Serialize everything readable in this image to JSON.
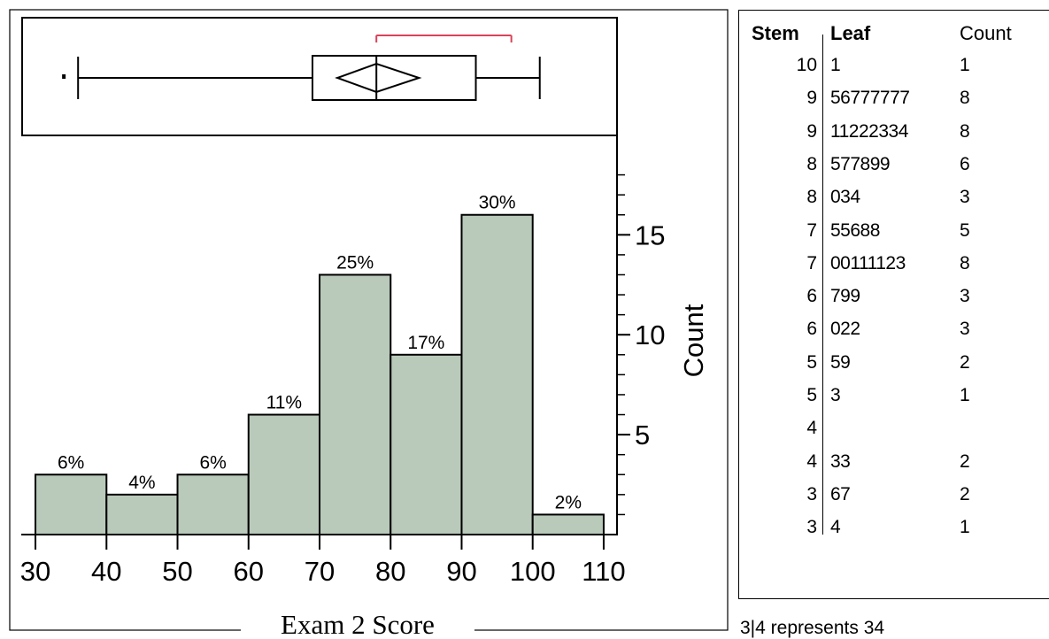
{
  "chart_data": {
    "type": "bar",
    "xlabel": "Exam 2 Score",
    "ylabel": "Count",
    "bins": [
      [
        30,
        40
      ],
      [
        40,
        50
      ],
      [
        50,
        60
      ],
      [
        60,
        70
      ],
      [
        70,
        80
      ],
      [
        80,
        90
      ],
      [
        90,
        100
      ],
      [
        100,
        110
      ]
    ],
    "values": [
      3,
      2,
      3,
      6,
      13,
      9,
      16,
      1
    ],
    "bar_labels": [
      "6%",
      "4%",
      "6%",
      "11%",
      "25%",
      "17%",
      "30%",
      "2%"
    ],
    "xlim": [
      28,
      112
    ],
    "ylim": [
      0,
      19
    ],
    "x_ticks": [
      30,
      40,
      50,
      60,
      70,
      80,
      90,
      100,
      110
    ],
    "x_tick_labels": [
      "30",
      "40",
      "50",
      "60",
      "70",
      "80",
      "90",
      "100",
      "110"
    ],
    "y_ticks": [
      5,
      10,
      15
    ],
    "y_tick_labels": [
      "5",
      "10",
      "15"
    ],
    "y_minor_ticks": [
      1,
      2,
      3,
      4,
      6,
      7,
      8,
      9,
      11,
      12,
      13,
      14,
      16,
      17,
      18
    ],
    "bar_color": "#b9c9ba",
    "boxplot": {
      "whisker_low": 36,
      "q1": 69,
      "median": 78,
      "q3": 92,
      "whisker_high": 101,
      "mean": 78,
      "mean_ci": [
        72.5,
        84
      ],
      "outliers": [
        34
      ],
      "shortest_half": [
        78,
        97
      ],
      "shortest_half_color": "#d9435a"
    }
  },
  "stem_leaf": {
    "headers": {
      "stem": "Stem",
      "leaf": "Leaf",
      "count": "Count"
    },
    "rows": [
      {
        "stem": "10",
        "leaf": "1",
        "count": "1"
      },
      {
        "stem": "9",
        "leaf": "56777777",
        "count": "8"
      },
      {
        "stem": "9",
        "leaf": "11222334",
        "count": "8"
      },
      {
        "stem": "8",
        "leaf": "577899",
        "count": "6"
      },
      {
        "stem": "8",
        "leaf": "034",
        "count": "3"
      },
      {
        "stem": "7",
        "leaf": "55688",
        "count": "5"
      },
      {
        "stem": "7",
        "leaf": "00111123",
        "count": "8"
      },
      {
        "stem": "6",
        "leaf": "799",
        "count": "3"
      },
      {
        "stem": "6",
        "leaf": "022",
        "count": "3"
      },
      {
        "stem": "5",
        "leaf": "59",
        "count": "2"
      },
      {
        "stem": "5",
        "leaf": "3",
        "count": "1"
      },
      {
        "stem": "4",
        "leaf": "",
        "count": ""
      },
      {
        "stem": "4",
        "leaf": "33",
        "count": "2"
      },
      {
        "stem": "3",
        "leaf": "67",
        "count": "2"
      },
      {
        "stem": "3",
        "leaf": "4",
        "count": "1"
      }
    ],
    "note": "3|4 represents 34"
  }
}
